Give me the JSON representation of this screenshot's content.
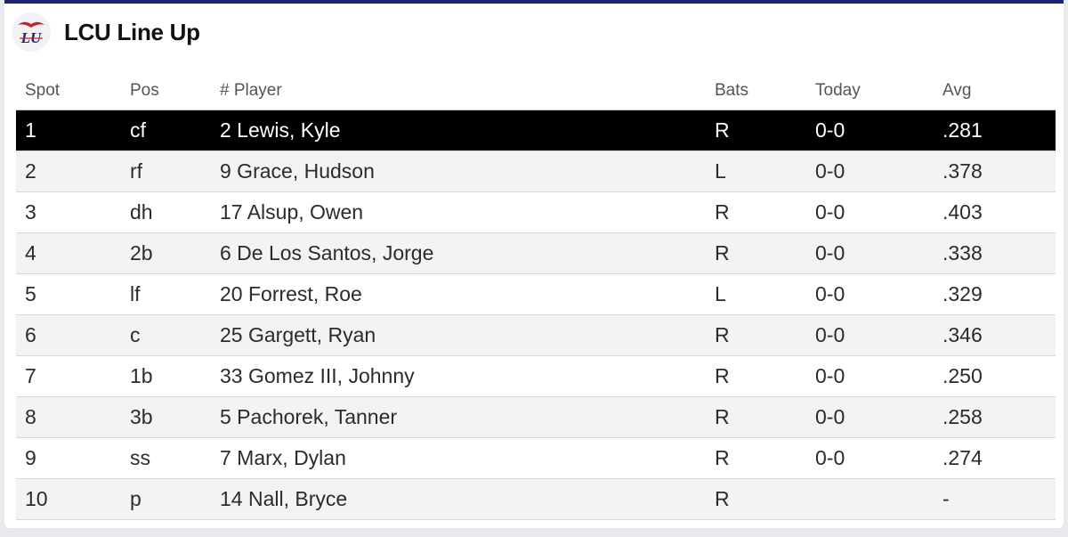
{
  "header": {
    "title": "LCU Line Up",
    "logo_icon": "lcu-logo-icon"
  },
  "colors": {
    "accent_bar": "#1c2372",
    "selected_row_bg": "#000000",
    "logo_red": "#c8202f",
    "logo_blue": "#1c2372"
  },
  "table": {
    "columns": {
      "spot": "Spot",
      "pos": "Pos",
      "player": "# Player",
      "bats": "Bats",
      "today": "Today",
      "avg": "Avg"
    },
    "rows": [
      {
        "spot": "1",
        "pos": "cf",
        "player": "2 Lewis, Kyle",
        "bats": "R",
        "today": "0-0",
        "avg": ".281"
      },
      {
        "spot": "2",
        "pos": "rf",
        "player": "9 Grace, Hudson",
        "bats": "L",
        "today": "0-0",
        "avg": ".378"
      },
      {
        "spot": "3",
        "pos": "dh",
        "player": "17 Alsup, Owen",
        "bats": "R",
        "today": "0-0",
        "avg": ".403"
      },
      {
        "spot": "4",
        "pos": "2b",
        "player": "6 De Los Santos, Jorge",
        "bats": "R",
        "today": "0-0",
        "avg": ".338"
      },
      {
        "spot": "5",
        "pos": "lf",
        "player": "20 Forrest, Roe",
        "bats": "L",
        "today": "0-0",
        "avg": ".329"
      },
      {
        "spot": "6",
        "pos": "c",
        "player": "25 Gargett, Ryan",
        "bats": "R",
        "today": "0-0",
        "avg": ".346"
      },
      {
        "spot": "7",
        "pos": "1b",
        "player": "33 Gomez III, Johnny",
        "bats": "R",
        "today": "0-0",
        "avg": ".250"
      },
      {
        "spot": "8",
        "pos": "3b",
        "player": "5 Pachorek, Tanner",
        "bats": "R",
        "today": "0-0",
        "avg": ".258"
      },
      {
        "spot": "9",
        "pos": "ss",
        "player": "7 Marx, Dylan",
        "bats": "R",
        "today": "0-0",
        "avg": ".274"
      },
      {
        "spot": "10",
        "pos": "p",
        "player": "14 Nall, Bryce",
        "bats": "R",
        "today": "",
        "avg": "-"
      }
    ]
  }
}
